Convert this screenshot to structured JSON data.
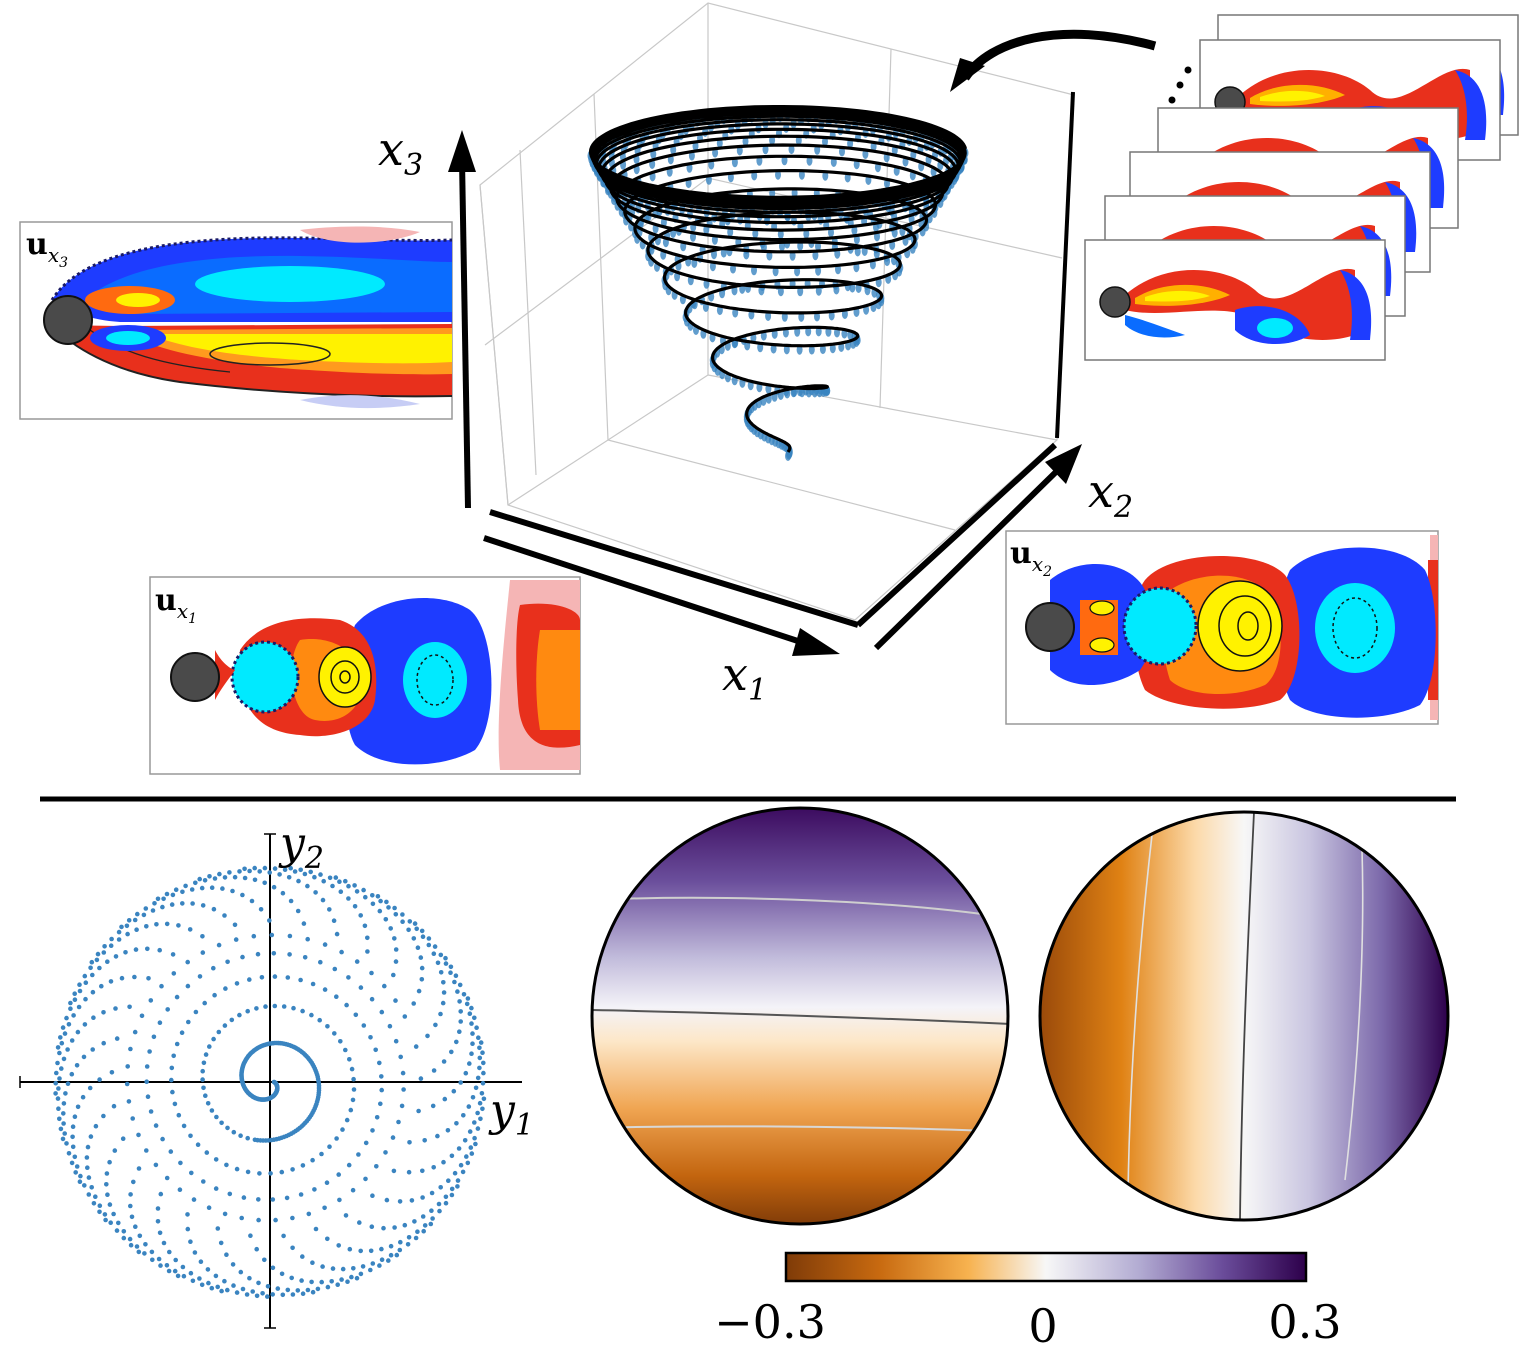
{
  "labels": {
    "x1": "x",
    "x1_sub": "1",
    "x2": "x",
    "x2_sub": "2",
    "x3": "x",
    "x3_sub": "3",
    "y1": "y",
    "y1_sub": "1",
    "y2": "y",
    "y2_sub": "2",
    "ux1": "u",
    "ux1_sub": "x",
    "ux1_subsub": "1",
    "ux2": "u",
    "ux2_sub": "x",
    "ux2_subsub": "2",
    "ux3": "u",
    "ux3_sub": "x",
    "ux3_subsub": "3"
  },
  "colorbar": {
    "min_label": "−0.3",
    "mid_label": "0",
    "max_label": "0.3",
    "min": -0.3,
    "max": 0.3
  },
  "colors": {
    "trajectory_blue": "#3a84c0",
    "orange_dark": "#7f3b08",
    "orange": "#e08214",
    "purple_dark": "#2d004b",
    "purple": "#8073ac",
    "flow_red": "#e8301c",
    "flow_yellow": "#fff200",
    "flow_blue": "#1e3cff",
    "flow_cyan": "#00f0ff"
  },
  "icons": [
    "cylinder-icon",
    "arrow-icon",
    "ellipsis-icon"
  ]
}
